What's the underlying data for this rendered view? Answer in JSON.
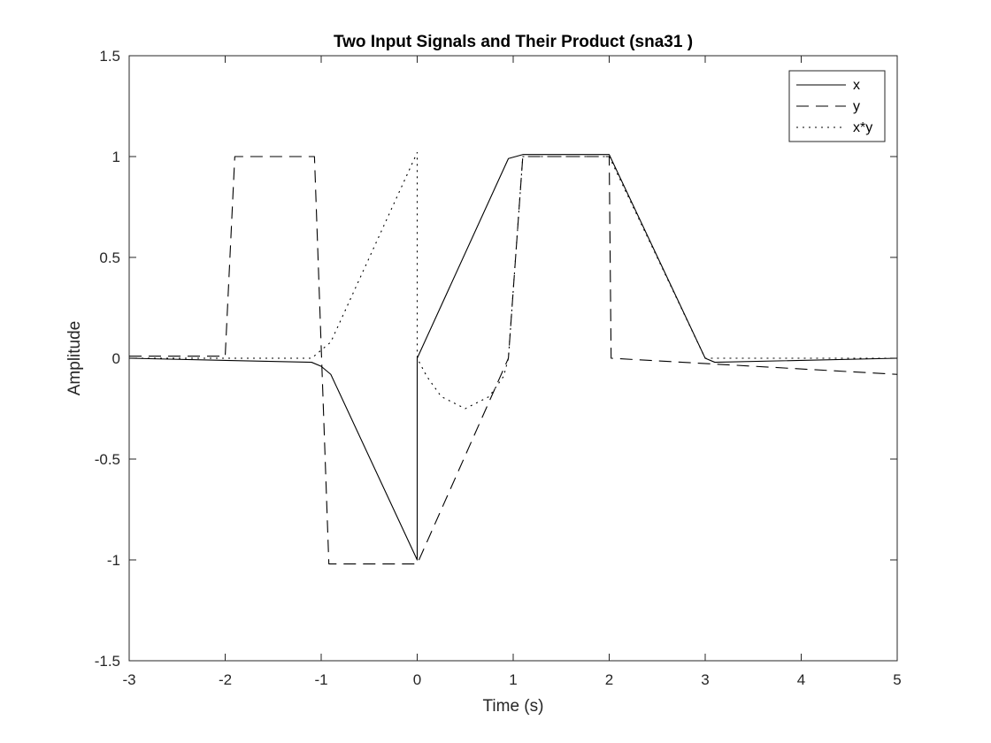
{
  "chart_data": {
    "type": "line",
    "title": "Two Input Signals and Their Product (sna31 )",
    "xlabel": "Time (s)",
    "ylabel": "Amplitude",
    "xlim": [
      -3,
      5
    ],
    "ylim": [
      -1.5,
      1.5
    ],
    "xticks": [
      -3,
      -2,
      -1,
      0,
      1,
      2,
      3,
      4,
      5
    ],
    "xtick_labels": [
      "-3",
      "-2",
      "-1",
      "0",
      "1",
      "2",
      "3",
      "4",
      "5"
    ],
    "yticks": [
      -1.5,
      -1,
      -0.5,
      0,
      0.5,
      1,
      1.5
    ],
    "ytick_labels": [
      "-1.5",
      "-1",
      "-0.5",
      "0",
      "0.5",
      "1",
      "1.5"
    ],
    "grid": false,
    "legend_position": "top-right",
    "line_color": "#000000",
    "series": [
      {
        "name": "x",
        "style": "solid",
        "x": [
          -3,
          -1.1,
          -1,
          -0.9,
          0,
          0,
          0.95,
          1.1,
          2,
          3,
          3.1,
          5
        ],
        "y": [
          0,
          -0.02,
          -0.04,
          -0.08,
          -1,
          0,
          0.99,
          1.01,
          1.01,
          0,
          -0.02,
          0
        ]
      },
      {
        "name": "y",
        "style": "dashed",
        "x": [
          -3,
          -2,
          -1.9,
          -1.07,
          -0.92,
          0,
          0.95,
          1.1,
          2,
          2.02,
          5
        ],
        "y": [
          0.01,
          0.01,
          1,
          1,
          -1.02,
          -1.02,
          0,
          1,
          1,
          0,
          -0.08
        ]
      },
      {
        "name": "x*y",
        "style": "dotted",
        "x": [
          -3,
          -1.1,
          -1,
          -0.9,
          0,
          0,
          0.1,
          0.25,
          0.5,
          0.75,
          0.9,
          0.95,
          1.1,
          2,
          3,
          3.2,
          5
        ],
        "y": [
          0,
          0,
          0.04,
          0.08,
          1.02,
          0,
          -0.09,
          -0.19,
          -0.25,
          -0.19,
          -0.09,
          0,
          1,
          1,
          0,
          0,
          0
        ]
      }
    ]
  }
}
